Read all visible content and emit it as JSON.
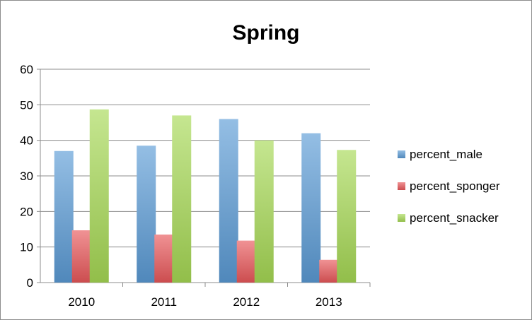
{
  "chart_data": {
    "type": "bar",
    "title": "Spring",
    "xlabel": "",
    "ylabel": "",
    "categories": [
      "2010",
      "2011",
      "2012",
      "2013"
    ],
    "ylim": [
      0,
      60
    ],
    "yticks": [
      0,
      10,
      20,
      30,
      40,
      50,
      60
    ],
    "grid": true,
    "legend_position": "right",
    "series": [
      {
        "name": "percent_male",
        "values": [
          37,
          38.5,
          46,
          42
        ],
        "color": "#5b9bd5"
      },
      {
        "name": "percent_sponger",
        "values": [
          14.7,
          13.5,
          11.8,
          6.4
        ],
        "color": "#e8585a"
      },
      {
        "name": "percent_snacker",
        "values": [
          48.7,
          47,
          40,
          37.3
        ],
        "color": "#a6d854"
      }
    ]
  }
}
